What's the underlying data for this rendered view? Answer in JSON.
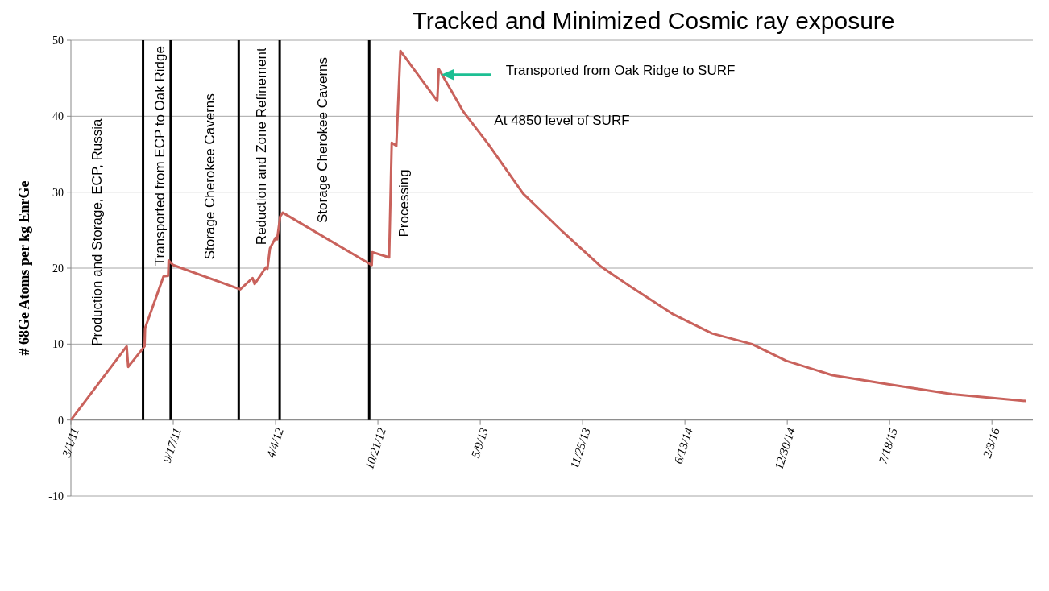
{
  "chart_data": {
    "type": "line",
    "title": "Tracked and Minimized Cosmic ray exposure",
    "ylabel": "# 68Ge Atoms per kg EnrGe",
    "x": [
      "2011-03-01",
      "2011-06-18",
      "2011-06-21",
      "2011-07-23",
      "2011-07-24",
      "2011-08-29",
      "2011-09-07",
      "2011-09-08",
      "2011-09-17",
      "2012-01-26",
      "2012-02-19",
      "2012-02-23",
      "2012-03-16",
      "2012-03-19",
      "2012-03-24",
      "2012-04-04",
      "2012-04-07",
      "2012-04-13",
      "2012-04-18",
      "2012-10-09",
      "2012-10-10",
      "2012-11-12",
      "2012-11-17",
      "2012-11-26",
      "2012-12-04",
      "2013-02-14",
      "2013-02-17",
      "2013-04-06",
      "2013-05-26",
      "2013-08-01",
      "2013-10-17",
      "2013-12-31",
      "2014-02-28",
      "2014-05-19",
      "2014-08-05",
      "2014-10-22",
      "2014-12-28",
      "2015-03-28",
      "2015-07-15",
      "2015-11-17",
      "2016-04-10"
    ],
    "series": [
      {
        "color": "#c9625c",
        "values": [
          0,
          9.7,
          7.0,
          9.7,
          12.1,
          18.9,
          19.0,
          21.0,
          20.4,
          17.2,
          18.7,
          17.9,
          20.1,
          19.9,
          22.6,
          24.0,
          23.8,
          26.8,
          27.3,
          20.4,
          22.1,
          21.4,
          36.5,
          36.1,
          48.6,
          42.0,
          46.2,
          40.6,
          36.2,
          29.8,
          24.8,
          20.2,
          17.5,
          14.0,
          11.4,
          10.0,
          7.8,
          5.9,
          4.7,
          3.4,
          2.5
        ]
      }
    ],
    "xlim": [
      "2011-03-01",
      "2016-04-23"
    ],
    "xticks": [
      {
        "value": "2011-03-01",
        "label": "3/1/11"
      },
      {
        "value": "2011-09-17",
        "label": "9/17/11"
      },
      {
        "value": "2012-04-04",
        "label": "4/4/12"
      },
      {
        "value": "2012-10-21",
        "label": "10/21/12"
      },
      {
        "value": "2013-05-09",
        "label": "5/9/13"
      },
      {
        "value": "2013-11-25",
        "label": "11/25/13"
      },
      {
        "value": "2014-06-13",
        "label": "6/13/14"
      },
      {
        "value": "2014-12-30",
        "label": "12/30/14"
      },
      {
        "value": "2015-07-18",
        "label": "7/18/15"
      },
      {
        "value": "2016-02-03",
        "label": "2/3/16"
      }
    ],
    "ylim": [
      -10,
      50
    ],
    "yticks": [
      -10,
      0,
      10,
      20,
      30,
      40,
      50
    ],
    "grid": "y",
    "marker": "none",
    "line_style": "solid",
    "ref_lines": [
      {
        "axis": "x",
        "value": "2011-07-20",
        "color": "#000000"
      },
      {
        "axis": "x",
        "value": "2011-09-12",
        "color": "#000000"
      },
      {
        "axis": "x",
        "value": "2012-01-23",
        "color": "#000000"
      },
      {
        "axis": "x",
        "value": "2012-04-12",
        "color": "#000000"
      },
      {
        "axis": "x",
        "value": "2012-10-04",
        "color": "#000000"
      }
    ],
    "annotations": [
      "Production and Storage, ECP, Russia",
      "Transported from ECP to Oak Ridge",
      "Storage Cherokee Caverns",
      "Reduction and Zone Refinement",
      "Storage Cherokee Caverns",
      "Processing",
      "Transported from Oak Ridge to SURF",
      "At 4850 level of SURF"
    ]
  }
}
